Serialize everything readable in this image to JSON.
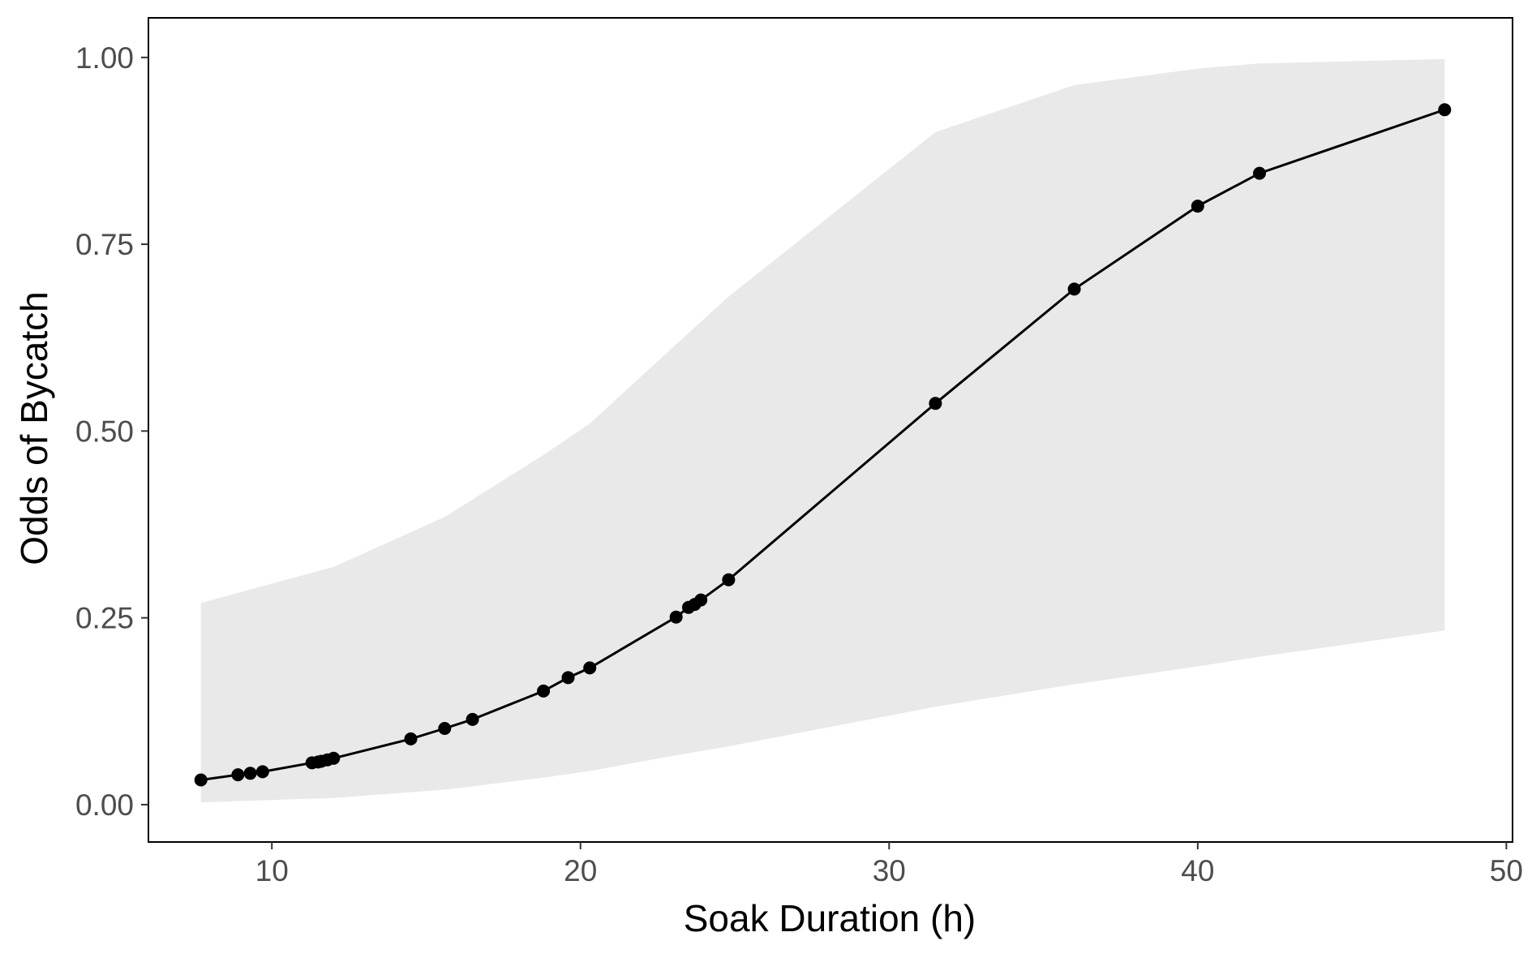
{
  "chart_data": {
    "type": "line",
    "xlabel": "Soak Duration (h)",
    "ylabel": "Odds of Bycatch",
    "xlim": [
      6.0,
      50.2
    ],
    "ylim": [
      -0.05,
      1.053
    ],
    "x_ticks": [
      10,
      20,
      30,
      40,
      50
    ],
    "x_tick_labels": [
      "10",
      "20",
      "30",
      "40",
      "50"
    ],
    "y_ticks": [
      0.0,
      0.25,
      0.5,
      0.75,
      1.0
    ],
    "y_tick_labels": [
      "0.00",
      "0.25",
      "0.50",
      "0.75",
      "1.00"
    ],
    "grid": false,
    "legend": "none",
    "colors": {
      "line": "#000000",
      "points": "#000000",
      "ribbon": "#e9e9e9",
      "axis": "#000000"
    },
    "series": [
      {
        "x": [
          7.7,
          8.9,
          9.3,
          9.7,
          11.3,
          11.5,
          11.6,
          11.8,
          12.0,
          14.5,
          15.6,
          16.5,
          18.8,
          19.6,
          20.3,
          23.1,
          23.5,
          23.7,
          23.9,
          24.8,
          31.5,
          36.0,
          40.0,
          42.0,
          48.0
        ],
        "y": [
          0.033,
          0.04,
          0.042,
          0.044,
          0.056,
          0.057,
          0.058,
          0.06,
          0.062,
          0.088,
          0.102,
          0.114,
          0.152,
          0.17,
          0.183,
          0.251,
          0.264,
          0.268,
          0.274,
          0.301,
          0.537,
          0.69,
          0.801,
          0.845,
          0.93
        ]
      }
    ],
    "confidence_band": {
      "x": [
        7.7,
        12.0,
        15.6,
        18.8,
        20.3,
        23.1,
        24.8,
        31.5,
        36.0,
        40.0,
        42.0,
        48.0
      ],
      "lower": [
        0.003,
        0.009,
        0.02,
        0.036,
        0.045,
        0.066,
        0.078,
        0.131,
        0.161,
        0.185,
        0.198,
        0.233
      ],
      "upper": [
        0.27,
        0.318,
        0.385,
        0.468,
        0.51,
        0.616,
        0.68,
        0.9,
        0.963,
        0.985,
        0.992,
        0.998
      ]
    }
  }
}
